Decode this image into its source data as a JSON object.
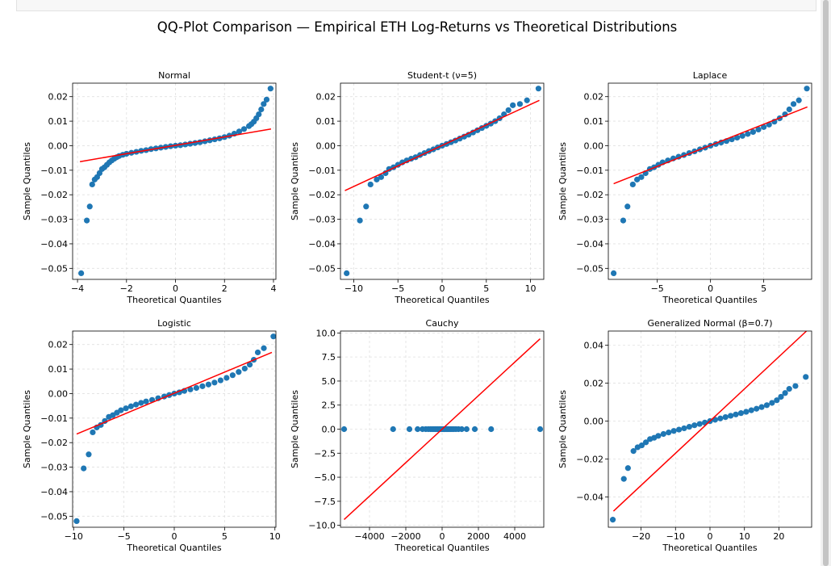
{
  "figure": {
    "title": "QQ-Plot Comparison — Empirical ETH Log-Returns vs Theoretical Distributions"
  },
  "colors": {
    "points": "#1f77b4",
    "reference_line": "#ff0000",
    "grid": "#e0e0e0"
  },
  "chart_data": [
    {
      "type": "scatter",
      "title": "Normal",
      "xlabel": "Theoretical Quantiles",
      "ylabel": "Sample Quantiles",
      "xlim": [
        -4.2,
        4.1
      ],
      "ylim": [
        -0.0545,
        0.0255
      ],
      "xticks": [
        -4,
        -2,
        0,
        2,
        4
      ],
      "xtick_labels": [
        "−4",
        "−2",
        "0",
        "2",
        "4"
      ],
      "yticks": [
        0.02,
        0.01,
        0.0,
        -0.01,
        -0.02,
        -0.03,
        -0.04,
        -0.05
      ],
      "ytick_labels": [
        "0.02",
        "0.01",
        "0.00",
        "−0.01",
        "−0.02",
        "−0.03",
        "−0.04",
        "−0.05"
      ],
      "grid": true,
      "reference_line": {
        "x": [
          -3.9,
          3.9
        ],
        "y": [
          -0.0065,
          0.0068
        ]
      },
      "points": [
        [
          -3.85,
          -0.052
        ],
        [
          -3.62,
          -0.0305
        ],
        [
          -3.5,
          -0.0248
        ],
        [
          -3.4,
          -0.0158
        ],
        [
          -3.3,
          -0.0138
        ],
        [
          -3.2,
          -0.0128
        ],
        [
          -3.1,
          -0.0112
        ],
        [
          -3.0,
          -0.0095
        ],
        [
          -2.9,
          -0.0088
        ],
        [
          -2.8,
          -0.0078
        ],
        [
          -2.7,
          -0.0068
        ],
        [
          -2.6,
          -0.006
        ],
        [
          -2.5,
          -0.0053
        ],
        [
          -2.4,
          -0.0047
        ],
        [
          -2.3,
          -0.0042
        ],
        [
          -2.15,
          -0.0037
        ],
        [
          -2.0,
          -0.0033
        ],
        [
          -1.8,
          -0.0029
        ],
        [
          -1.6,
          -0.0025
        ],
        [
          -1.4,
          -0.0021
        ],
        [
          -1.2,
          -0.0018
        ],
        [
          -1.0,
          -0.0014
        ],
        [
          -0.8,
          -0.0011
        ],
        [
          -0.6,
          -0.0008
        ],
        [
          -0.4,
          -0.0005
        ],
        [
          -0.2,
          -0.0002
        ],
        [
          0.0,
          0.0
        ],
        [
          0.2,
          0.0002
        ],
        [
          0.4,
          0.0005
        ],
        [
          0.6,
          0.0008
        ],
        [
          0.8,
          0.0011
        ],
        [
          1.0,
          0.0014
        ],
        [
          1.2,
          0.0018
        ],
        [
          1.4,
          0.0022
        ],
        [
          1.6,
          0.0026
        ],
        [
          1.8,
          0.003
        ],
        [
          2.0,
          0.0035
        ],
        [
          2.2,
          0.0041
        ],
        [
          2.4,
          0.0049
        ],
        [
          2.6,
          0.0058
        ],
        [
          2.8,
          0.0068
        ],
        [
          3.0,
          0.008
        ],
        [
          3.1,
          0.0088
        ],
        [
          3.2,
          0.0098
        ],
        [
          3.3,
          0.0112
        ],
        [
          3.4,
          0.0128
        ],
        [
          3.5,
          0.0148
        ],
        [
          3.6,
          0.017
        ],
        [
          3.72,
          0.0188
        ],
        [
          3.88,
          0.0233
        ]
      ]
    },
    {
      "type": "scatter",
      "title": "Student-t (ν=5)",
      "xlabel": "Theoretical Quantiles",
      "ylabel": "Sample Quantiles",
      "xlim": [
        -11.5,
        11.5
      ],
      "ylim": [
        -0.0545,
        0.0255
      ],
      "xticks": [
        -10,
        -5,
        0,
        5,
        10
      ],
      "xtick_labels": [
        "−10",
        "−5",
        "0",
        "5",
        "10"
      ],
      "yticks": [
        0.02,
        0.01,
        0.0,
        -0.01,
        -0.02,
        -0.03,
        -0.04,
        -0.05
      ],
      "ytick_labels": [
        "0.02",
        "0.01",
        "0.00",
        "−0.01",
        "−0.02",
        "−0.03",
        "−0.04",
        "−0.05"
      ],
      "grid": true,
      "reference_line": {
        "x": [
          -11,
          11
        ],
        "y": [
          -0.0183,
          0.0185
        ]
      },
      "points": [
        [
          -10.8,
          -0.052
        ],
        [
          -9.3,
          -0.0305
        ],
        [
          -8.6,
          -0.0248
        ],
        [
          -8.1,
          -0.0158
        ],
        [
          -7.4,
          -0.0138
        ],
        [
          -6.9,
          -0.0128
        ],
        [
          -6.4,
          -0.0112
        ],
        [
          -6.0,
          -0.0095
        ],
        [
          -5.5,
          -0.0088
        ],
        [
          -5.0,
          -0.0078
        ],
        [
          -4.5,
          -0.0068
        ],
        [
          -4.0,
          -0.006
        ],
        [
          -3.5,
          -0.0053
        ],
        [
          -3.0,
          -0.0047
        ],
        [
          -2.5,
          -0.0038
        ],
        [
          -2.0,
          -0.003
        ],
        [
          -1.5,
          -0.0022
        ],
        [
          -1.0,
          -0.0015
        ],
        [
          -0.5,
          -0.0007
        ],
        [
          0.0,
          0.0
        ],
        [
          0.5,
          0.0007
        ],
        [
          1.0,
          0.0014
        ],
        [
          1.5,
          0.0021
        ],
        [
          2.0,
          0.0029
        ],
        [
          2.5,
          0.0037
        ],
        [
          3.0,
          0.0045
        ],
        [
          3.5,
          0.0054
        ],
        [
          4.0,
          0.0063
        ],
        [
          4.5,
          0.0072
        ],
        [
          5.0,
          0.0081
        ],
        [
          5.5,
          0.009
        ],
        [
          6.0,
          0.01
        ],
        [
          6.5,
          0.0112
        ],
        [
          7.0,
          0.0128
        ],
        [
          7.5,
          0.0145
        ],
        [
          8.0,
          0.0165
        ],
        [
          8.8,
          0.017
        ],
        [
          9.6,
          0.0185
        ],
        [
          10.9,
          0.0233
        ]
      ]
    },
    {
      "type": "scatter",
      "title": "Laplace",
      "xlabel": "Theoretical Quantiles",
      "ylabel": "Sample Quantiles",
      "xlim": [
        -9.6,
        9.5
      ],
      "ylim": [
        -0.0545,
        0.0255
      ],
      "xticks": [
        -5,
        0,
        5
      ],
      "xtick_labels": [
        "−5",
        "0",
        "5"
      ],
      "yticks": [
        0.02,
        0.01,
        0.0,
        -0.01,
        -0.02,
        -0.03,
        -0.04,
        -0.05
      ],
      "ytick_labels": [
        "0.02",
        "0.01",
        "0.00",
        "−0.01",
        "−0.02",
        "−0.03",
        "−0.04",
        "−0.05"
      ],
      "grid": true,
      "reference_line": {
        "x": [
          -9.1,
          9.1
        ],
        "y": [
          -0.0155,
          0.0158
        ]
      },
      "points": [
        [
          -9.1,
          -0.052
        ],
        [
          -8.2,
          -0.0305
        ],
        [
          -7.8,
          -0.0248
        ],
        [
          -7.3,
          -0.0158
        ],
        [
          -6.9,
          -0.0138
        ],
        [
          -6.5,
          -0.0128
        ],
        [
          -6.1,
          -0.0112
        ],
        [
          -5.7,
          -0.0095
        ],
        [
          -5.3,
          -0.0088
        ],
        [
          -4.9,
          -0.0078
        ],
        [
          -4.5,
          -0.0068
        ],
        [
          -4.0,
          -0.006
        ],
        [
          -3.5,
          -0.0052
        ],
        [
          -3.0,
          -0.0045
        ],
        [
          -2.5,
          -0.0038
        ],
        [
          -2.0,
          -0.003
        ],
        [
          -1.5,
          -0.0023
        ],
        [
          -1.0,
          -0.0015
        ],
        [
          -0.5,
          -0.0008
        ],
        [
          0.0,
          0.0
        ],
        [
          0.5,
          0.0007
        ],
        [
          1.0,
          0.0013
        ],
        [
          1.5,
          0.0019
        ],
        [
          2.0,
          0.0026
        ],
        [
          2.5,
          0.0033
        ],
        [
          3.0,
          0.004
        ],
        [
          3.5,
          0.0048
        ],
        [
          4.0,
          0.0056
        ],
        [
          4.5,
          0.0066
        ],
        [
          5.0,
          0.0076
        ],
        [
          5.5,
          0.0086
        ],
        [
          6.0,
          0.0098
        ],
        [
          6.5,
          0.0112
        ],
        [
          7.0,
          0.0128
        ],
        [
          7.4,
          0.0148
        ],
        [
          7.8,
          0.017
        ],
        [
          8.3,
          0.0185
        ],
        [
          9.05,
          0.0233
        ]
      ]
    },
    {
      "type": "scatter",
      "title": "Logistic",
      "xlabel": "Theoretical Quantiles",
      "ylabel": "Sample Quantiles",
      "xlim": [
        -10.1,
        10.1
      ],
      "ylim": [
        -0.0545,
        0.0255
      ],
      "xticks": [
        -10,
        -5,
        0,
        5,
        10
      ],
      "xtick_labels": [
        "−10",
        "−5",
        "0",
        "5",
        "10"
      ],
      "yticks": [
        0.02,
        0.01,
        0.0,
        -0.01,
        -0.02,
        -0.03,
        -0.04,
        -0.05
      ],
      "ytick_labels": [
        "0.02",
        "0.01",
        "0.00",
        "−0.01",
        "−0.02",
        "−0.03",
        "−0.04",
        "−0.05"
      ],
      "grid": true,
      "reference_line": {
        "x": [
          -9.7,
          9.7
        ],
        "y": [
          -0.0165,
          0.0168
        ]
      },
      "points": [
        [
          -9.7,
          -0.052
        ],
        [
          -9.0,
          -0.0305
        ],
        [
          -8.5,
          -0.0248
        ],
        [
          -8.1,
          -0.0158
        ],
        [
          -7.7,
          -0.0138
        ],
        [
          -7.3,
          -0.0128
        ],
        [
          -6.9,
          -0.0112
        ],
        [
          -6.5,
          -0.0095
        ],
        [
          -6.1,
          -0.0088
        ],
        [
          -5.7,
          -0.0078
        ],
        [
          -5.3,
          -0.0068
        ],
        [
          -4.8,
          -0.006
        ],
        [
          -4.3,
          -0.0052
        ],
        [
          -3.8,
          -0.0045
        ],
        [
          -3.3,
          -0.0038
        ],
        [
          -2.8,
          -0.0032
        ],
        [
          -2.2,
          -0.0026
        ],
        [
          -1.6,
          -0.0019
        ],
        [
          -1.0,
          -0.0012
        ],
        [
          -0.5,
          -0.0006
        ],
        [
          0.0,
          0.0
        ],
        [
          0.5,
          0.0005
        ],
        [
          1.0,
          0.0011
        ],
        [
          1.6,
          0.0017
        ],
        [
          2.2,
          0.0023
        ],
        [
          2.8,
          0.003
        ],
        [
          3.4,
          0.0037
        ],
        [
          4.0,
          0.0045
        ],
        [
          4.6,
          0.0054
        ],
        [
          5.2,
          0.0064
        ],
        [
          5.8,
          0.0075
        ],
        [
          6.4,
          0.0088
        ],
        [
          7.0,
          0.0102
        ],
        [
          7.5,
          0.0118
        ],
        [
          7.9,
          0.0138
        ],
        [
          8.3,
          0.0168
        ],
        [
          8.9,
          0.0185
        ],
        [
          9.85,
          0.0233
        ]
      ]
    },
    {
      "type": "scatter",
      "title": "Cauchy",
      "xlabel": "Theoretical Quantiles",
      "ylabel": "Sample Quantiles",
      "xlim": [
        -5600,
        5600
      ],
      "ylim": [
        -10.2,
        10.2
      ],
      "xticks": [
        -4000,
        -2000,
        0,
        2000,
        4000
      ],
      "xtick_labels": [
        "−4000",
        "−2000",
        "0",
        "2000",
        "4000"
      ],
      "yticks": [
        10.0,
        7.5,
        5.0,
        2.5,
        0.0,
        -2.5,
        -5.0,
        -7.5,
        -10.0
      ],
      "ytick_labels": [
        "10.0",
        "7.5",
        "5.0",
        "2.5",
        "0.0",
        "−2.5",
        "−5.0",
        "−7.5",
        "−10.0"
      ],
      "grid": true,
      "reference_line": {
        "x": [
          -5400,
          5400
        ],
        "y": [
          -9.4,
          9.4
        ]
      },
      "points": [
        [
          -5400,
          0
        ],
        [
          -2700,
          0
        ],
        [
          -1800,
          0
        ],
        [
          -1350,
          0
        ],
        [
          -1080,
          0
        ],
        [
          -900,
          0
        ],
        [
          -760,
          0
        ],
        [
          -640,
          0
        ],
        [
          -540,
          0
        ],
        [
          -450,
          0
        ],
        [
          -370,
          0
        ],
        [
          -300,
          0
        ],
        [
          -230,
          0
        ],
        [
          -160,
          0
        ],
        [
          -100,
          0
        ],
        [
          -50,
          0
        ],
        [
          0,
          0
        ],
        [
          50,
          0
        ],
        [
          100,
          0
        ],
        [
          160,
          0
        ],
        [
          230,
          0
        ],
        [
          300,
          0
        ],
        [
          370,
          0
        ],
        [
          450,
          0
        ],
        [
          540,
          0
        ],
        [
          640,
          0
        ],
        [
          760,
          0
        ],
        [
          900,
          0
        ],
        [
          1080,
          0
        ],
        [
          1350,
          0
        ],
        [
          1800,
          0
        ],
        [
          2700,
          0
        ],
        [
          5400,
          0
        ]
      ]
    },
    {
      "type": "scatter",
      "title": "Generalized Normal (β=0.7)",
      "xlabel": "Theoretical Quantiles",
      "ylabel": "Sample Quantiles",
      "xlim": [
        -29.5,
        29.5
      ],
      "ylim": [
        -0.056,
        0.0475
      ],
      "xticks": [
        -20,
        -10,
        0,
        10,
        20
      ],
      "xtick_labels": [
        "−20",
        "−10",
        "0",
        "10",
        "20"
      ],
      "yticks": [
        0.04,
        0.02,
        0.0,
        -0.02,
        -0.04
      ],
      "ytick_labels": [
        "0.04",
        "0.02",
        "0.00",
        "−0.02",
        "−0.04"
      ],
      "grid": true,
      "reference_line": {
        "x": [
          -28,
          28
        ],
        "y": [
          -0.0475,
          0.0475
        ]
      },
      "points": [
        [
          -28.2,
          -0.052
        ],
        [
          -25.0,
          -0.0305
        ],
        [
          -23.8,
          -0.0248
        ],
        [
          -22.2,
          -0.0158
        ],
        [
          -21.0,
          -0.0138
        ],
        [
          -19.8,
          -0.0128
        ],
        [
          -18.6,
          -0.0112
        ],
        [
          -17.4,
          -0.0095
        ],
        [
          -16.2,
          -0.0088
        ],
        [
          -15.0,
          -0.0078
        ],
        [
          -13.5,
          -0.0068
        ],
        [
          -12.0,
          -0.006
        ],
        [
          -10.5,
          -0.0052
        ],
        [
          -9.0,
          -0.0045
        ],
        [
          -7.5,
          -0.0038
        ],
        [
          -6.0,
          -0.003
        ],
        [
          -4.5,
          -0.0022
        ],
        [
          -3.0,
          -0.0015
        ],
        [
          -1.5,
          -0.0008
        ],
        [
          0.0,
          0.0
        ],
        [
          1.5,
          0.0007
        ],
        [
          3.0,
          0.0014
        ],
        [
          4.5,
          0.0021
        ],
        [
          6.0,
          0.0028
        ],
        [
          7.5,
          0.0035
        ],
        [
          9.0,
          0.0042
        ],
        [
          10.5,
          0.0049
        ],
        [
          12.0,
          0.0057
        ],
        [
          13.5,
          0.0065
        ],
        [
          15.0,
          0.0074
        ],
        [
          16.5,
          0.0084
        ],
        [
          18.0,
          0.0096
        ],
        [
          19.4,
          0.011
        ],
        [
          20.6,
          0.0128
        ],
        [
          21.8,
          0.0148
        ],
        [
          23.0,
          0.017
        ],
        [
          24.8,
          0.0185
        ],
        [
          27.8,
          0.0233
        ]
      ]
    }
  ]
}
